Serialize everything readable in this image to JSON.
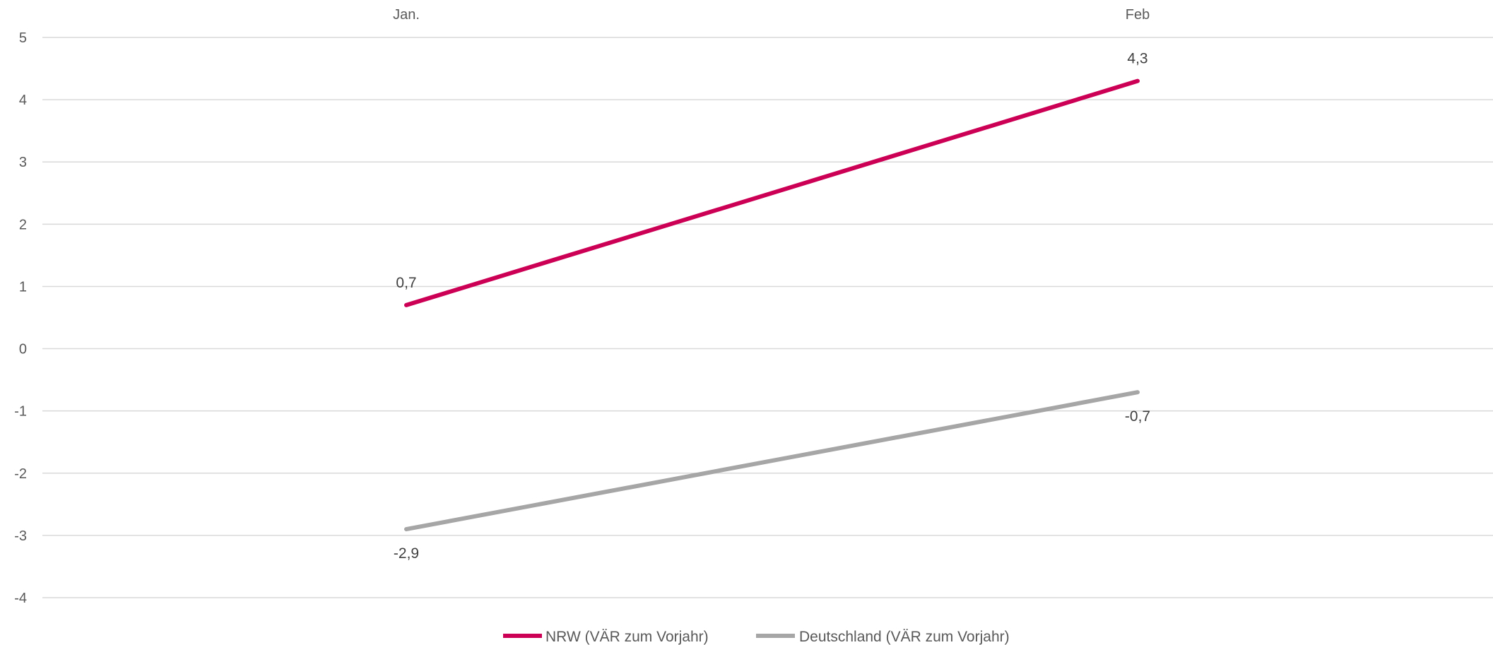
{
  "chart_data": {
    "type": "line",
    "title": "",
    "xlabel": "",
    "ylabel": "",
    "categories": [
      "Jan.",
      "Feb"
    ],
    "x_axis_position": "top",
    "ylim": [
      -4,
      5
    ],
    "yticks": [
      5,
      4,
      3,
      2,
      1,
      0,
      -1,
      -2,
      -3,
      -4
    ],
    "grid": true,
    "legend_position": "bottom",
    "series": [
      {
        "name": "NRW (VÄR zum Vorjahr)",
        "color": "#cc0055",
        "values": [
          0.7,
          4.3
        ],
        "labels": [
          "0,7",
          "4,3"
        ],
        "label_position": "above"
      },
      {
        "name": "Deutschland (VÄR zum Vorjahr)",
        "color": "#a6a6a6",
        "values": [
          -2.9,
          -0.7
        ],
        "labels": [
          "-2,9",
          "-0,7"
        ],
        "label_position": "below"
      }
    ]
  }
}
